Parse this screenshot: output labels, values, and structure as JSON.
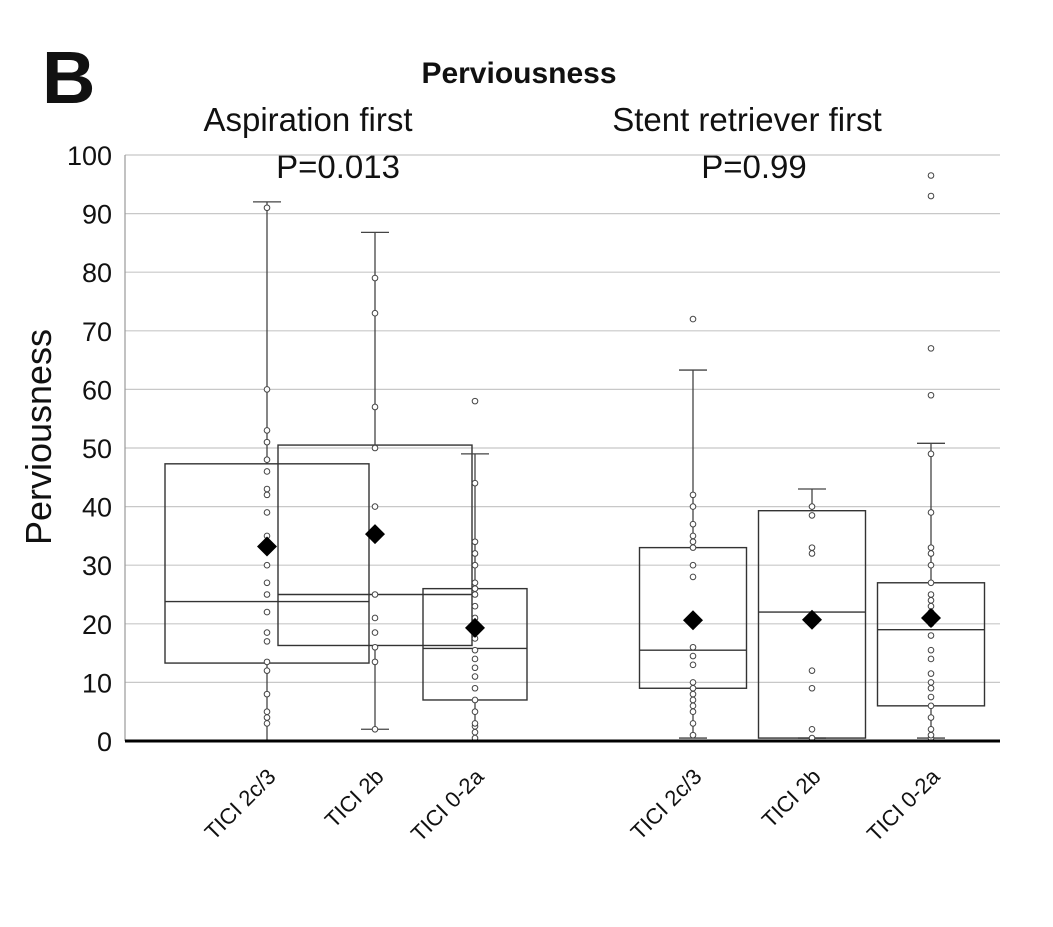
{
  "panel_label": "B",
  "chart_data": {
    "type": "box",
    "title": "Perviousness",
    "ylabel": "Perviousness",
    "ylim": [
      0,
      100
    ],
    "yticks": [
      0,
      10,
      20,
      30,
      40,
      50,
      60,
      70,
      80,
      90,
      100
    ],
    "grid": true,
    "groups": [
      {
        "name": "Aspiration first",
        "pvalue": "P=0.013",
        "categories": [
          {
            "label": "TICI 2c/3",
            "min": 0,
            "q1": 13.3,
            "median": 23.8,
            "q3": 47.3,
            "max": 92,
            "mean": 33.2,
            "points": [
              3,
              4,
              5,
              8,
              12,
              13.5,
              17,
              18.5,
              22,
              25,
              27,
              30,
              35,
              39,
              42,
              43,
              46,
              48,
              51,
              53,
              60,
              91
            ]
          },
          {
            "label": "TICI 2b",
            "min": 2,
            "q1": 16.3,
            "median": 25,
            "q3": 50.5,
            "max": 86.8,
            "mean": 35.3,
            "points": [
              2,
              13.5,
              16,
              18.5,
              21,
              25,
              40,
              50,
              57,
              73,
              79
            ]
          },
          {
            "label": "TICI 0-2a",
            "min": 0,
            "q1": 7,
            "median": 15.8,
            "q3": 26,
            "max": 49,
            "mean": 19.3,
            "points": [
              0.5,
              1.5,
              2.5,
              3,
              5,
              7,
              9,
              11,
              12.5,
              14,
              15.5,
              17.5,
              19,
              21,
              23,
              25,
              26,
              27,
              30,
              32,
              34,
              44,
              58
            ]
          }
        ]
      },
      {
        "name": "Stent retriever first",
        "pvalue": "P=0.99",
        "categories": [
          {
            "label": "TICI 2c/3",
            "min": 0.5,
            "q1": 9,
            "median": 15.5,
            "q3": 33,
            "max": 63.3,
            "mean": 20.6,
            "points": [
              1,
              3,
              5,
              6,
              7,
              8,
              9,
              10,
              13,
              14.5,
              16,
              20,
              28,
              30,
              33,
              34,
              35,
              37,
              40,
              42,
              72
            ]
          },
          {
            "label": "TICI 2b",
            "min": 0.5,
            "q1": 0.5,
            "median": 22,
            "q3": 39.3,
            "max": 43,
            "mean": 20.7,
            "points": [
              0.5,
              2,
              9,
              12,
              32,
              33,
              38.5,
              40
            ]
          },
          {
            "label": "TICI 0-2a",
            "min": 0.5,
            "q1": 6,
            "median": 19,
            "q3": 27,
            "max": 50.8,
            "mean": 21,
            "points": [
              0.5,
              1,
              2,
              4,
              6,
              7.5,
              9,
              10,
              11.5,
              14,
              15.5,
              18,
              20,
              22,
              23,
              24,
              25,
              27,
              30,
              32,
              33,
              39,
              49,
              59,
              67,
              93,
              96.5
            ]
          }
        ]
      }
    ]
  }
}
